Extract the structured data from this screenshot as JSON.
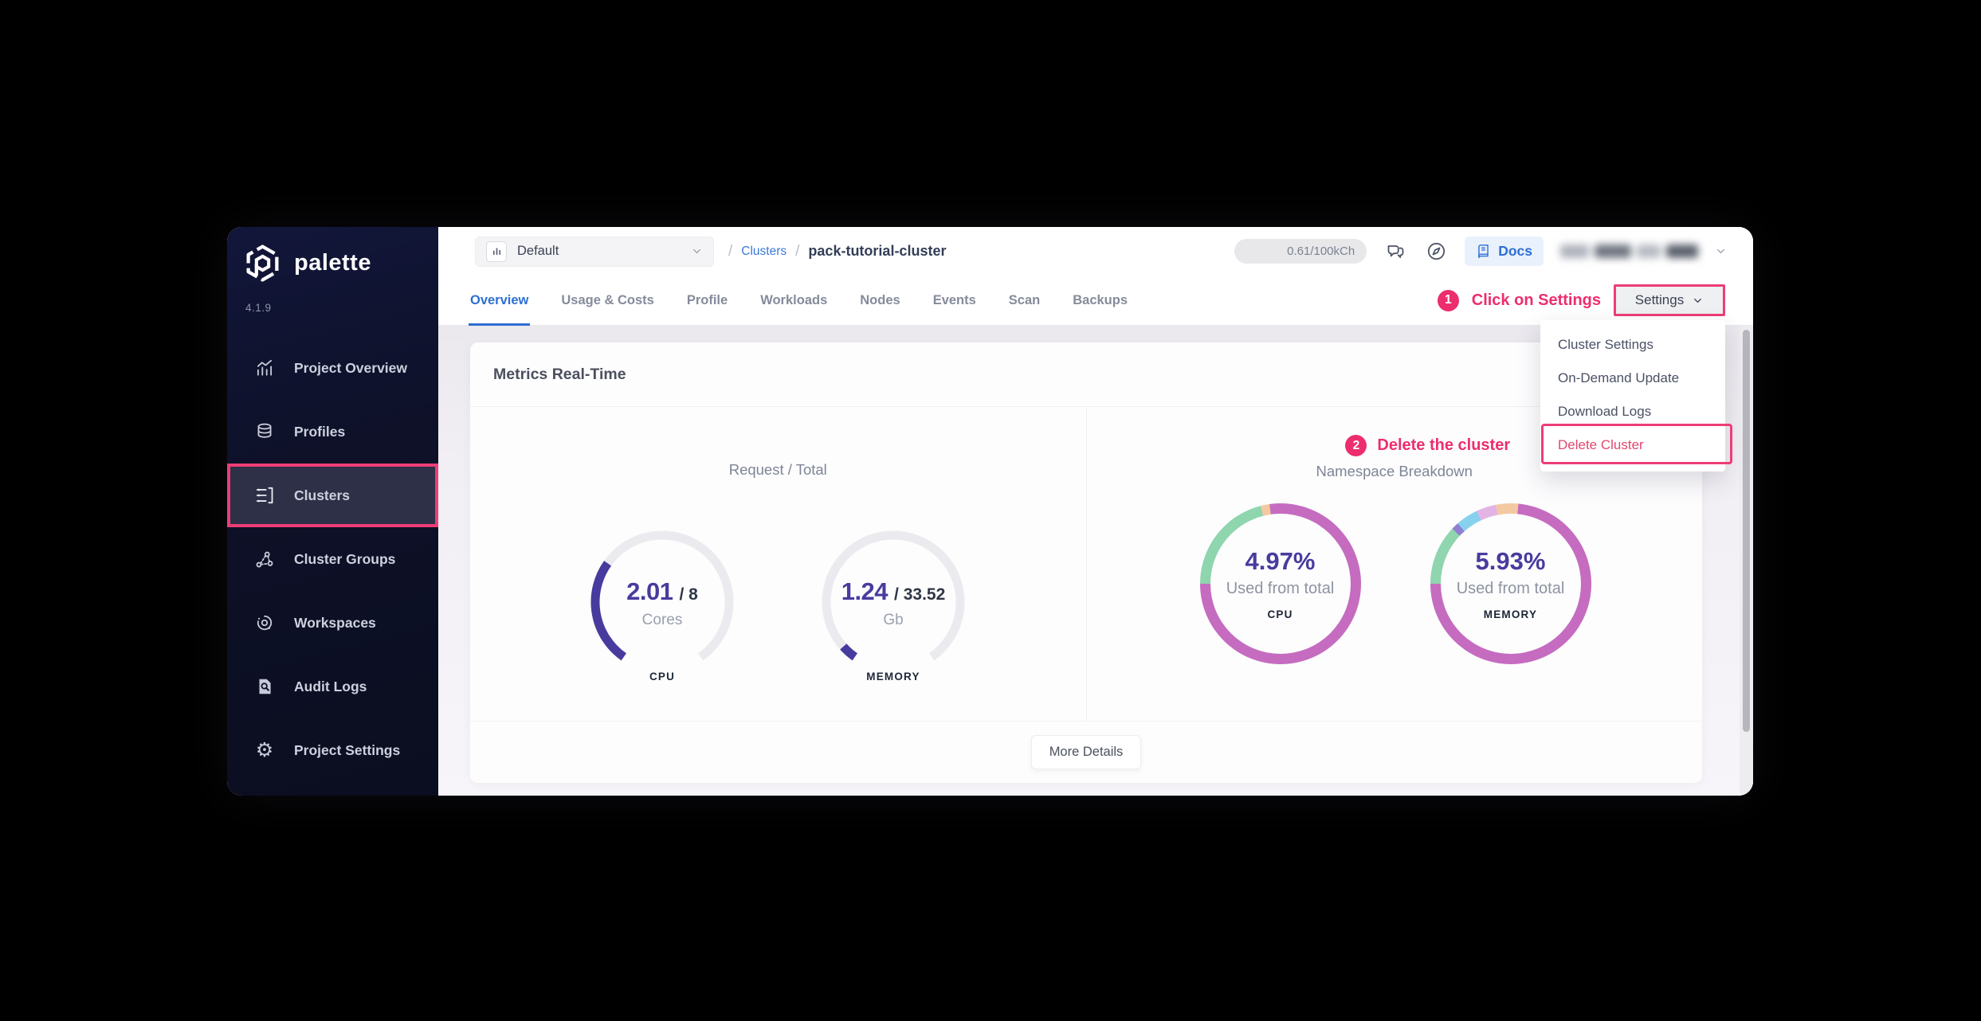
{
  "app": {
    "brand": "palette",
    "version": "4.1.9"
  },
  "sidebar": {
    "items": [
      {
        "label": "Project Overview",
        "icon": "project-overview-icon",
        "active": false
      },
      {
        "label": "Profiles",
        "icon": "profiles-icon",
        "active": false
      },
      {
        "label": "Clusters",
        "icon": "clusters-icon",
        "active": true,
        "highlighted": true
      },
      {
        "label": "Cluster Groups",
        "icon": "cluster-groups-icon",
        "active": false
      },
      {
        "label": "Workspaces",
        "icon": "workspaces-icon",
        "active": false
      },
      {
        "label": "Audit Logs",
        "icon": "audit-logs-icon",
        "active": false
      },
      {
        "label": "Project Settings",
        "icon": "gear-icon",
        "active": false
      }
    ]
  },
  "topbar": {
    "project_selector": {
      "value": "Default",
      "icon": "bar-chart-icon",
      "chevron": "chevron-down-icon"
    },
    "breadcrumb": {
      "separator": "/",
      "link": "Clusters",
      "current": "pack-tutorial-cluster"
    },
    "usage_badge": "0.61/100kCh",
    "icons": [
      "chat-icon",
      "compass-icon"
    ],
    "docs_button": {
      "label": "Docs",
      "icon": "book-icon"
    }
  },
  "tabs": {
    "items": [
      {
        "label": "Overview",
        "active": true
      },
      {
        "label": "Usage & Costs",
        "active": false
      },
      {
        "label": "Profile",
        "active": false
      },
      {
        "label": "Workloads",
        "active": false
      },
      {
        "label": "Nodes",
        "active": false
      },
      {
        "label": "Events",
        "active": false
      },
      {
        "label": "Scan",
        "active": false
      },
      {
        "label": "Backups",
        "active": false
      }
    ]
  },
  "annotations": {
    "step1": {
      "number": "1",
      "text": "Click on Settings",
      "color": "#ec2e6e"
    },
    "step2": {
      "number": "2",
      "text": "Delete the cluster",
      "color": "#ec2e6e"
    }
  },
  "settings": {
    "button_label": "Settings",
    "menu_items": [
      {
        "label": "Cluster Settings",
        "danger": false
      },
      {
        "label": "On-Demand Update",
        "danger": false
      },
      {
        "label": "Download Logs",
        "danger": false
      },
      {
        "label": "Delete Cluster",
        "danger": true,
        "highlighted": true
      }
    ]
  },
  "metrics_card": {
    "title": "Metrics Real-Time",
    "left_section_title": "Request / Total",
    "right_section_title": "Namespace Breakdown",
    "more_details_button": "More Details"
  },
  "colors": {
    "highlight_pink": "#ee3d76",
    "link_blue": "#2e6fd3",
    "gauge_purple": "#483b9e",
    "donut_pink": "#c56cc0",
    "donut_green": "#8fd5ae"
  },
  "chart_data": [
    {
      "type": "gauge",
      "name": "cpu-request-total",
      "value": 2.01,
      "total": 8,
      "value_display": "2.01",
      "total_display": "/ 8",
      "unit": "Cores",
      "label": "CPU",
      "color": "#483b9e",
      "track_color": "#ebebef",
      "start_angle_deg": 215,
      "sweep_deg": 290
    },
    {
      "type": "gauge",
      "name": "memory-request-total",
      "value": 1.24,
      "total": 33.52,
      "value_display": "1.24",
      "total_display": "/ 33.52",
      "unit": "Gb",
      "label": "MEMORY",
      "color": "#483b9e",
      "track_color": "#ebebef",
      "start_angle_deg": 215,
      "sweep_deg": 290
    },
    {
      "type": "donut",
      "name": "cpu-namespace-breakdown",
      "percent_display": "4.97%",
      "subtitle": "Used from total",
      "label": "CPU",
      "start_angle_deg": 270,
      "segments": [
        {
          "color": "#8fd5ae",
          "percent": 21
        },
        {
          "color": "#f4c9a2",
          "percent": 1.8
        },
        {
          "color": "#c56cc0",
          "percent": 77.2
        }
      ]
    },
    {
      "type": "donut",
      "name": "memory-namespace-breakdown",
      "percent_display": "5.93%",
      "subtitle": "Used from total",
      "label": "MEMORY",
      "start_angle_deg": 270,
      "segments": [
        {
          "color": "#8fd5ae",
          "percent": 12
        },
        {
          "color": "#8f7fd0",
          "percent": 1.5
        },
        {
          "color": "#88d1ee",
          "percent": 4.5
        },
        {
          "color": "#e2b4e4",
          "percent": 4
        },
        {
          "color": "#f4c9a2",
          "percent": 4.5
        },
        {
          "color": "#c56cc0",
          "percent": 73.5
        }
      ]
    }
  ]
}
